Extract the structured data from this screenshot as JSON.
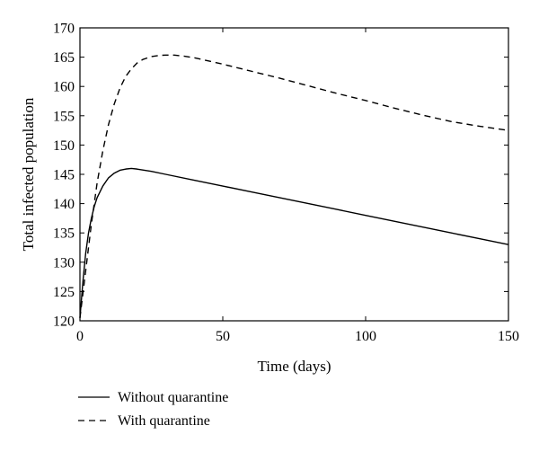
{
  "chart_data": {
    "type": "line",
    "title": "",
    "xlabel": "Time (days)",
    "ylabel": "Total infected population",
    "xlim": [
      0,
      150
    ],
    "ylim": [
      120,
      170
    ],
    "xticks": [
      "0",
      "50",
      "100",
      "150"
    ],
    "yticks": [
      "120",
      "125",
      "130",
      "135",
      "140",
      "145",
      "150",
      "155",
      "160",
      "165",
      "170"
    ],
    "grid": false,
    "legend_position": "bottom-left, below plot",
    "series": [
      {
        "name": "Without quarantine",
        "style": "solid",
        "color": "#000000",
        "x": [
          0,
          1,
          2,
          3,
          4,
          5,
          6,
          8,
          10,
          12,
          14,
          16,
          18,
          20,
          25,
          30,
          40,
          50,
          60,
          70,
          80,
          90,
          100,
          110,
          120,
          130,
          140,
          150
        ],
        "y": [
          120.5,
          126.5,
          131.5,
          135.0,
          137.5,
          139.5,
          141.0,
          143.0,
          144.4,
          145.2,
          145.7,
          145.9,
          146.0,
          145.9,
          145.5,
          145.0,
          144.0,
          143.0,
          142.0,
          141.0,
          140.0,
          139.0,
          138.0,
          137.0,
          136.0,
          135.0,
          134.0,
          133.0
        ]
      },
      {
        "name": "With quarantine",
        "style": "dashed",
        "color": "#000000",
        "x": [
          0,
          1,
          2,
          3,
          4,
          5,
          6,
          8,
          10,
          12,
          14,
          16,
          18,
          20,
          22,
          25,
          28,
          30,
          33,
          36,
          40,
          50,
          60,
          70,
          80,
          90,
          100,
          110,
          120,
          130,
          140,
          150
        ],
        "y": [
          120.5,
          124.5,
          128.5,
          132.5,
          136.5,
          140.0,
          143.5,
          149.0,
          153.5,
          157.0,
          159.7,
          161.7,
          163.0,
          164.0,
          164.6,
          165.1,
          165.3,
          165.35,
          165.35,
          165.2,
          164.9,
          163.8,
          162.6,
          161.4,
          160.1,
          158.8,
          157.6,
          156.3,
          155.1,
          154.0,
          153.2,
          152.5
        ]
      }
    ]
  },
  "legend": {
    "items": [
      {
        "label": "Without quarantine",
        "style": "solid"
      },
      {
        "label": "With quarantine",
        "style": "dashed"
      }
    ]
  }
}
